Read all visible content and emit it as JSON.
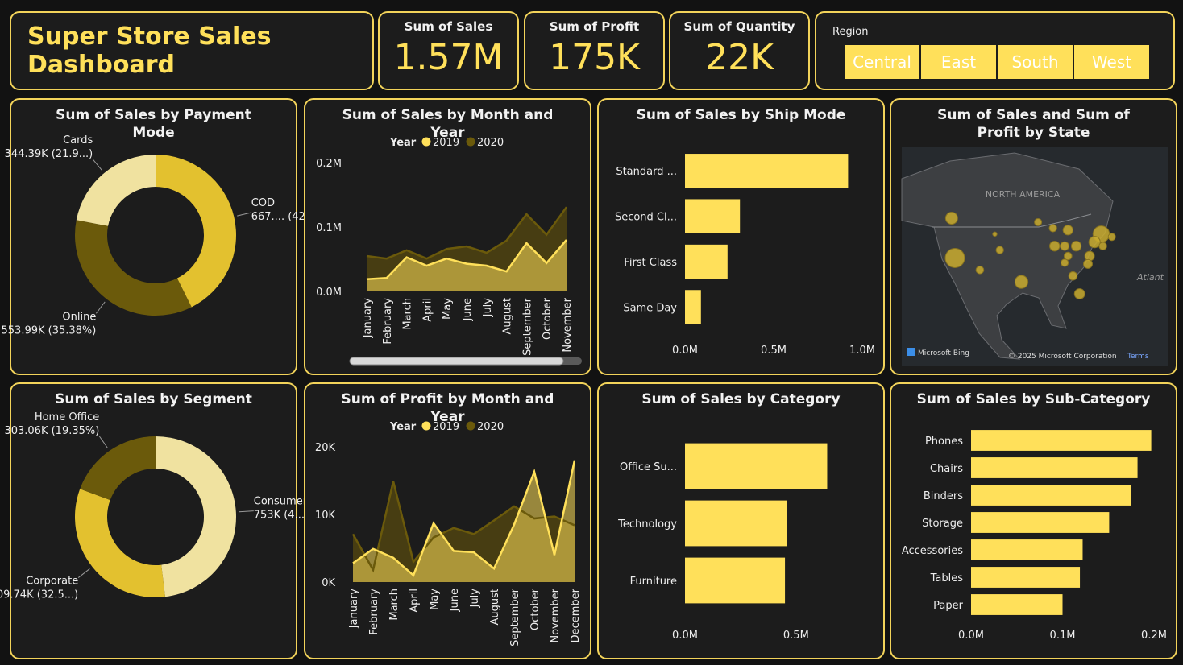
{
  "header": {
    "title": "Super Store Sales Dashboard"
  },
  "kpis": [
    {
      "label": "Sum of Sales",
      "value": "1.57M"
    },
    {
      "label": "Sum of Profit",
      "value": "175K"
    },
    {
      "label": "Sum of Quantity",
      "value": "22K"
    }
  ],
  "slicer": {
    "title": "Region",
    "items": [
      "Central",
      "East",
      "South",
      "West"
    ]
  },
  "chart_data": [
    {
      "type": "donut",
      "title": "Sum of Sales by Payment Mode",
      "categories": [
        "COD",
        "Online",
        "Cards"
      ],
      "values": [
        667.42,
        553.99,
        344.39
      ],
      "value_labels": [
        "667.... (42...)",
        "553.99K (35.38%)",
        "344.39K (21.9...)"
      ],
      "colors": [
        "#e3c12f",
        "#6b5a0b",
        "#f0e2a0"
      ]
    },
    {
      "type": "area",
      "title": "Sum of Sales by Month and Year",
      "legend_title": "Year",
      "categories": [
        "January",
        "February",
        "March",
        "April",
        "May",
        "June",
        "July",
        "August",
        "September",
        "October",
        "November"
      ],
      "series": [
        {
          "name": "2020",
          "color": "#6b5a0b",
          "values": [
            0.055,
            0.051,
            0.064,
            0.051,
            0.066,
            0.07,
            0.06,
            0.079,
            0.12,
            0.088,
            0.131
          ]
        },
        {
          "name": "2019",
          "color": "#ffe05a",
          "values": [
            0.019,
            0.021,
            0.053,
            0.04,
            0.051,
            0.043,
            0.04,
            0.031,
            0.075,
            0.044,
            0.08
          ]
        }
      ],
      "ylim": [
        0,
        0.2
      ],
      "yticks": [
        {
          "value": 0,
          "label": "0.0M"
        },
        {
          "value": 0.1,
          "label": "0.1M"
        },
        {
          "value": 0.2,
          "label": "0.2M"
        }
      ]
    },
    {
      "type": "hbar",
      "title": "Sum of Sales by Ship Mode",
      "categories": [
        "Standard ...",
        "Second Cl...",
        "First Class",
        "Same Day"
      ],
      "values": [
        0.92,
        0.31,
        0.24,
        0.09
      ],
      "color": "#ffe05a",
      "xlim": [
        0,
        1.0
      ],
      "xticks": [
        {
          "value": 0,
          "label": "0.0M"
        },
        {
          "value": 0.5,
          "label": "0.5M"
        },
        {
          "value": 1.0,
          "label": "1.0M"
        }
      ]
    },
    {
      "type": "map",
      "title": "Sum of Sales and Sum of Profit by State",
      "x": [
        -119,
        -120,
        -75,
        -99,
        -77,
        -81.5,
        -89,
        -82.5,
        -85,
        -78.5,
        -79,
        -83.5,
        -111.5,
        -105.5,
        -71.8,
        -74.5,
        -86,
        -94,
        -89.5,
        -86,
        -85,
        -107
      ],
      "y": [
        37,
        47,
        43,
        31,
        41,
        28,
        40,
        40,
        44,
        37.5,
        35.5,
        32.5,
        34,
        39,
        42.3,
        40,
        35.8,
        46,
        44.5,
        40,
        37.5,
        43
      ],
      "sizes": [
        457,
        138,
        310,
        170,
        116,
        89,
        80,
        78,
        76,
        70,
        55,
        49,
        35,
        32,
        28,
        35,
        30,
        29,
        32,
        53,
        36,
        2
      ],
      "color": "#c9ac2e",
      "xlim": [
        -135,
        -55
      ],
      "ylim": [
        10,
        65
      ],
      "labels": [
        "NORTH AMERICA",
        "Atlant"
      ],
      "attribution": [
        "Microsoft Bing",
        "© 2025 Microsoft Corporation",
        "Terms"
      ]
    },
    {
      "type": "donut",
      "title": "Sum of Sales by Segment",
      "categories": [
        "Consumer",
        "Corporate",
        "Home Office"
      ],
      "values": [
        753,
        509.74,
        303.06
      ],
      "value_labels": [
        "753K (4...)",
        "509.74K (32.5...)",
        "303.06K (19.35%)"
      ],
      "colors": [
        "#f0e2a0",
        "#e3c12f",
        "#6b5a0b"
      ]
    },
    {
      "type": "area",
      "title": "Sum of Profit by Month and Year",
      "legend_title": "Year",
      "categories": [
        "January",
        "February",
        "March",
        "April",
        "May",
        "June",
        "July",
        "August",
        "September",
        "October",
        "November",
        "December"
      ],
      "series": [
        {
          "name": "2020",
          "color": "#6b5a0b",
          "values": [
            7.1,
            1.8,
            14.9,
            3.0,
            6.6,
            8.0,
            7.1,
            9.1,
            11.2,
            9.4,
            9.7,
            8.4
          ]
        },
        {
          "name": "2019",
          "color": "#ffe05a",
          "values": [
            2.8,
            4.9,
            3.6,
            1.0,
            8.7,
            4.6,
            4.4,
            2.0,
            8.5,
            16.3,
            4.0,
            18.0
          ]
        }
      ],
      "ylim": [
        0,
        20
      ],
      "yticks": [
        {
          "value": 0,
          "label": "0K"
        },
        {
          "value": 10,
          "label": "10K"
        },
        {
          "value": 20,
          "label": "20K"
        }
      ]
    },
    {
      "type": "hbar",
      "title": "Sum of Sales by Category",
      "categories": [
        "Office Su...",
        "Technology",
        "Furniture"
      ],
      "values": [
        0.64,
        0.46,
        0.45
      ],
      "color": "#ffe05a",
      "xlim": [
        0,
        0.7
      ],
      "xticks": [
        {
          "value": 0,
          "label": "0.0M"
        },
        {
          "value": 0.5,
          "label": "0.5M"
        }
      ]
    },
    {
      "type": "hbar",
      "title": "Sum of Sales by Sub-Category",
      "categories": [
        "Phones",
        "Chairs",
        "Binders",
        "Storage",
        "Accessories",
        "Tables",
        "Paper"
      ],
      "values": [
        0.197,
        0.182,
        0.175,
        0.151,
        0.122,
        0.119,
        0.1
      ],
      "color": "#ffe05a",
      "xlim": [
        0,
        0.2
      ],
      "xticks": [
        {
          "value": 0,
          "label": "0.0M"
        },
        {
          "value": 0.1,
          "label": "0.1M"
        },
        {
          "value": 0.2,
          "label": "0.2M"
        }
      ]
    }
  ]
}
